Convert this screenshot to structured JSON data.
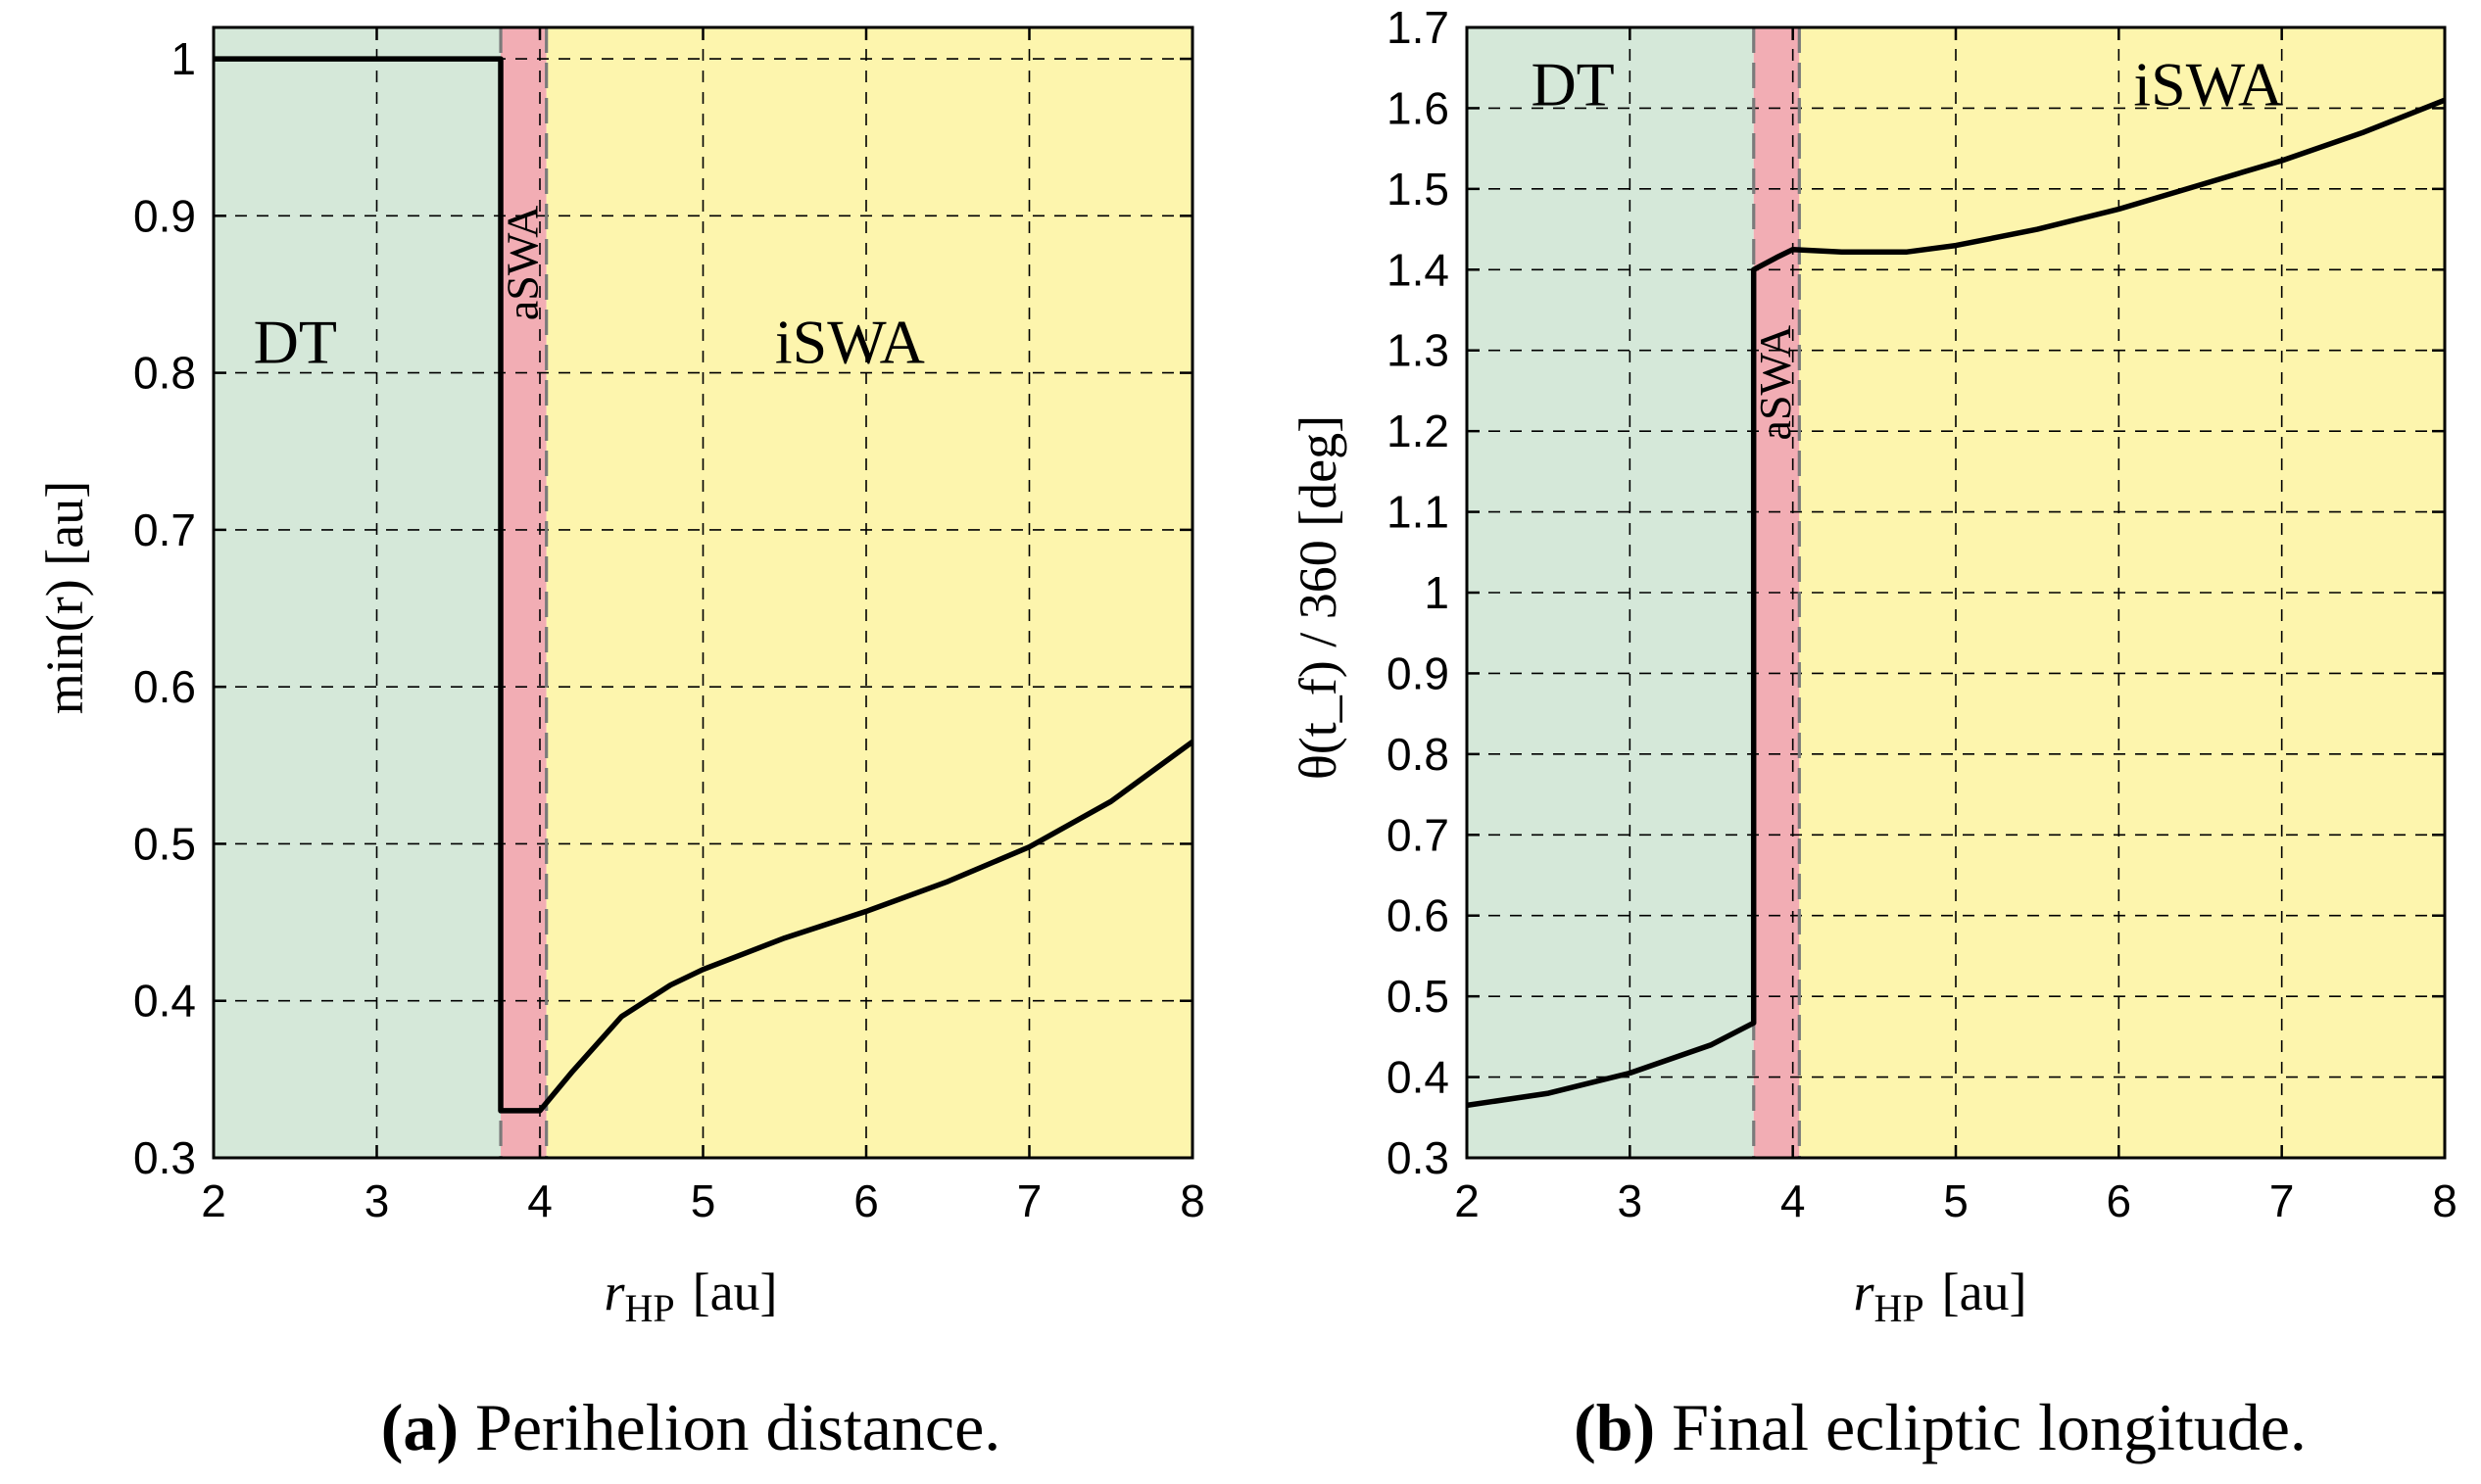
{
  "colors": {
    "dt_region": "#d5e8d9",
    "aswa_region": "#f2adb4",
    "iswa_region": "#fdf5ad",
    "curve": "#000000",
    "grid": "#000000",
    "boundary_dash": "#7a7a7a"
  },
  "chart_data": [
    {
      "type": "line",
      "caption_letter": "(a)",
      "caption_text": " Perihelion distance.",
      "xlabel": "r_HP [au]",
      "xlabel_main": "r",
      "xlabel_sub": "HP",
      "xlabel_unit": "[au]",
      "ylabel": "min(r) [au]",
      "xlim": [
        2,
        8
      ],
      "ylim": [
        0.3,
        1.02
      ],
      "xticks": [
        "2",
        "3",
        "4",
        "5",
        "6",
        "7",
        "8"
      ],
      "xtick_values": [
        2,
        3,
        4,
        5,
        6,
        7,
        8
      ],
      "yticks": [
        "0.3",
        "0.4",
        "0.5",
        "0.6",
        "0.7",
        "0.8",
        "0.9",
        "1"
      ],
      "ytick_values": [
        0.3,
        0.4,
        0.5,
        0.6,
        0.7,
        0.8,
        0.9,
        1.0
      ],
      "grid": true,
      "regions": [
        {
          "name": "DT",
          "label": "DT",
          "x_range": [
            2,
            3.76
          ],
          "color_key": "dt_region",
          "label_at": [
            2.5,
            0.82
          ]
        },
        {
          "name": "aSWA",
          "label": "aSWA",
          "x_range": [
            3.76,
            4.04
          ],
          "color_key": "aswa_region",
          "label_at": [
            3.9,
            0.87
          ]
        },
        {
          "name": "iSWA",
          "label": "iSWA",
          "x_range": [
            4.04,
            8
          ],
          "color_key": "iswa_region",
          "label_at": [
            5.9,
            0.82
          ]
        }
      ],
      "series": [
        {
          "name": "min(r)",
          "x": [
            2.0,
            3.76,
            3.76,
            4.0,
            4.2,
            4.5,
            4.8,
            5.0,
            5.5,
            6.0,
            6.5,
            7.0,
            7.5,
            8.0
          ],
          "y": [
            1.0,
            1.0,
            0.33,
            0.33,
            0.355,
            0.39,
            0.41,
            0.42,
            0.44,
            0.457,
            0.476,
            0.498,
            0.527,
            0.565
          ]
        }
      ]
    },
    {
      "type": "line",
      "caption_letter": "(b)",
      "caption_text": " Final ecliptic longitude.",
      "xlabel": "r_HP [au]",
      "xlabel_main": "r",
      "xlabel_sub": "HP",
      "xlabel_unit": "[au]",
      "ylabel": "θ(t_f) / 360 [deg]",
      "xlim": [
        2,
        8
      ],
      "ylim": [
        0.3,
        1.7
      ],
      "xticks": [
        "2",
        "3",
        "4",
        "5",
        "6",
        "7",
        "8"
      ],
      "xtick_values": [
        2,
        3,
        4,
        5,
        6,
        7,
        8
      ],
      "yticks": [
        "0.3",
        "0.4",
        "0.5",
        "0.6",
        "0.7",
        "0.8",
        "0.9",
        "1",
        "1.1",
        "1.2",
        "1.3",
        "1.4",
        "1.5",
        "1.6",
        "1.7"
      ],
      "ytick_values": [
        0.3,
        0.4,
        0.5,
        0.6,
        0.7,
        0.8,
        0.9,
        1.0,
        1.1,
        1.2,
        1.3,
        1.4,
        1.5,
        1.6,
        1.7
      ],
      "grid": true,
      "regions": [
        {
          "name": "DT",
          "label": "DT",
          "x_range": [
            2,
            3.76
          ],
          "color_key": "dt_region",
          "label_at": [
            2.65,
            1.63
          ]
        },
        {
          "name": "aSWA",
          "label": "aSWA",
          "x_range": [
            3.76,
            4.04
          ],
          "color_key": "aswa_region",
          "label_at": [
            3.9,
            1.26
          ]
        },
        {
          "name": "iSWA",
          "label": "iSWA",
          "x_range": [
            4.04,
            8
          ],
          "color_key": "iswa_region",
          "label_at": [
            6.55,
            1.63
          ]
        }
      ],
      "series": [
        {
          "name": "theta(t_f)/360",
          "x": [
            2.0,
            2.5,
            3.0,
            3.5,
            3.76,
            3.76,
            3.9,
            4.0,
            4.3,
            4.7,
            5.0,
            5.5,
            6.0,
            6.5,
            7.0,
            7.5,
            8.0
          ],
          "y": [
            0.365,
            0.38,
            0.405,
            0.44,
            0.467,
            1.4,
            1.415,
            1.425,
            1.422,
            1.422,
            1.43,
            1.45,
            1.475,
            1.505,
            1.535,
            1.57,
            1.61
          ]
        }
      ]
    }
  ]
}
